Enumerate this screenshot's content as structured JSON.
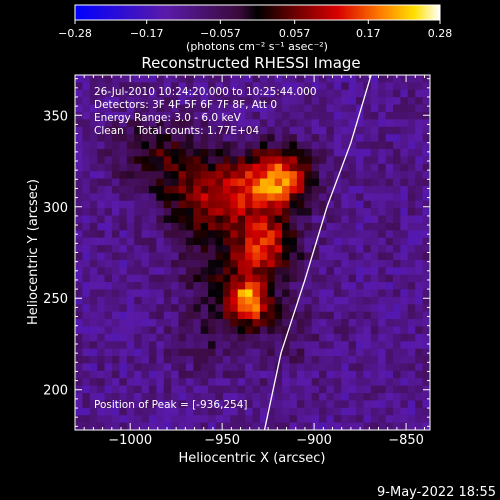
{
  "chart_data": {
    "type": "heatmap",
    "title": "Reconstructed RHESSI Image",
    "xlabel": "Heliocentric X (arcsec)",
    "ylabel": "Heliocentric Y (arcsec)",
    "xlim": [
      -1030,
      -837
    ],
    "ylim": [
      178,
      372
    ],
    "x_ticks": [
      -1000,
      -950,
      -900,
      -850
    ],
    "x_tick_labels": [
      "−1000",
      "−950",
      "−900",
      "−850"
    ],
    "y_ticks": [
      200,
      250,
      300,
      350
    ],
    "y_tick_labels": [
      "200",
      "250",
      "300",
      "350"
    ],
    "colorbar": {
      "range": [
        -0.28,
        0.28
      ],
      "ticks": [
        -0.28,
        -0.17,
        -0.057,
        0.057,
        0.17,
        0.28
      ],
      "tick_labels": [
        "−0.28",
        "−0.17",
        "−0.057",
        "0.057",
        "0.17",
        "0.28"
      ],
      "unit_label": "(photons cm⁻² s⁻¹ asec⁻²)",
      "colormap": "blue-purple-red-yellow-white"
    },
    "annotations": [
      "26-Jul-2010 10:24:20.000 to 10:25:44.000",
      "Detectors: 3F 4F 5F 6F 7F 8F, Att 0",
      "Energy Range: 3.0 - 6.0 keV",
      "Clean    Total counts: 1.77E+04"
    ],
    "peak_label": "Position of Peak = [-936,254]",
    "peak": [
      -936,
      254
    ],
    "sources": [
      {
        "x": -936,
        "y": 248,
        "amplitude": 0.3,
        "sigma": 9
      },
      {
        "x": -927,
        "y": 278,
        "amplitude": 0.24,
        "sigma": 12
      },
      {
        "x": -918,
        "y": 315,
        "amplitude": 0.26,
        "sigma": 12
      },
      {
        "x": -940,
        "y": 310,
        "amplitude": 0.16,
        "sigma": 14
      },
      {
        "x": -963,
        "y": 300,
        "amplitude": 0.13,
        "sigma": 14
      },
      {
        "x": -975,
        "y": 325,
        "amplitude": 0.1,
        "sigma": 14
      },
      {
        "x": -955,
        "y": 265,
        "amplitude": 0.1,
        "sigma": 12
      },
      {
        "x": -958,
        "y": 230,
        "amplitude": 0.06,
        "sigma": 14
      },
      {
        "x": -995,
        "y": 330,
        "amplitude": 0.07,
        "sigma": 12
      },
      {
        "x": -915,
        "y": 230,
        "amplitude": 0.05,
        "sigma": 14
      }
    ],
    "limb_curve": [
      [
        -927,
        178
      ],
      [
        -918,
        220
      ],
      [
        -905,
        260
      ],
      [
        -893,
        300
      ],
      [
        -880,
        335
      ],
      [
        -869,
        372
      ]
    ]
  },
  "footer": {
    "date": "9-May-2022 18:55"
  }
}
